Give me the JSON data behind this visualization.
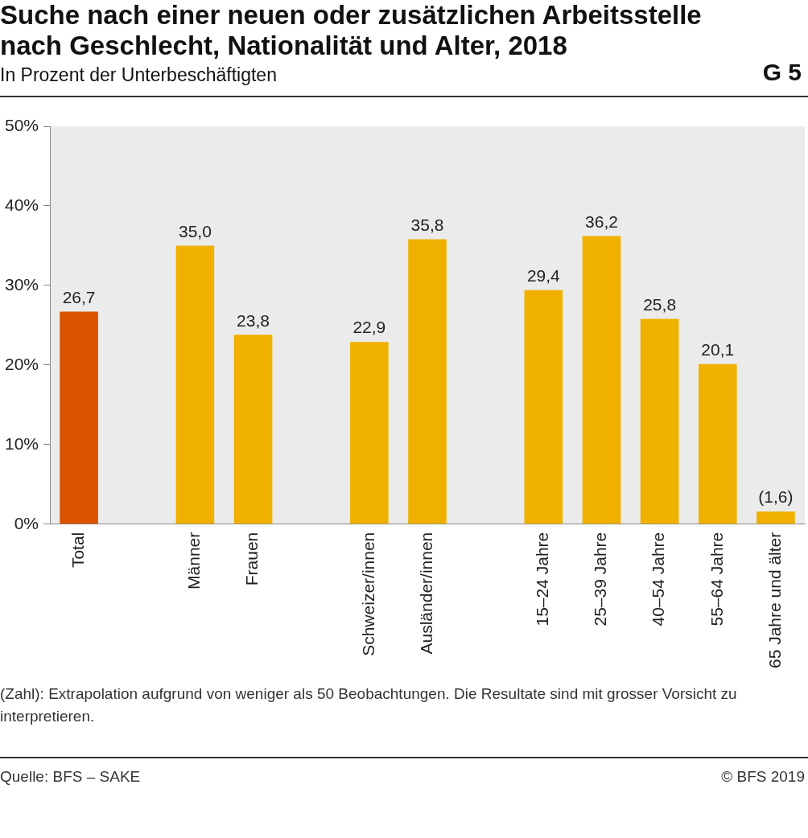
{
  "chart_data": {
    "type": "bar",
    "title": "Suche nach einer neuen oder zusätzlichen Arbeitsstelle nach Geschlecht, Nationalität und Alter, 2018",
    "subtitle": "In Prozent der Unterbeschäftigten",
    "categories": [
      "Total",
      null,
      "Männer",
      "Frauen",
      null,
      "Schweizer/innen",
      "Ausländer/innen",
      null,
      "15–24 Jahre",
      "25–39 Jahre",
      "40–54 Jahre",
      "55–64 Jahre",
      "65 Jahre und älter"
    ],
    "values": [
      26.7,
      null,
      35.0,
      23.8,
      null,
      22.9,
      35.8,
      null,
      29.4,
      36.2,
      25.8,
      20.1,
      1.6
    ],
    "value_labels": [
      "26,7",
      null,
      "35,0",
      "23,8",
      null,
      "22,9",
      "35,8",
      null,
      "29,4",
      "36,2",
      "25,8",
      "20,1",
      "(1,6)"
    ],
    "colors": [
      "#d95300",
      null,
      "#f0b000",
      "#f0b000",
      null,
      "#f0b000",
      "#f0b000",
      null,
      "#f0b000",
      "#f0b000",
      "#f0b000",
      "#f0b000",
      "#f0b000"
    ],
    "ylim": [
      0,
      50
    ],
    "yticks": [
      {
        "value": 0,
        "label": "0%"
      },
      {
        "value": 10,
        "label": "10%"
      },
      {
        "value": 20,
        "label": "20%"
      },
      {
        "value": 30,
        "label": "30%"
      },
      {
        "value": 40,
        "label": "40%"
      },
      {
        "value": 50,
        "label": "50%"
      }
    ],
    "grid": false,
    "legend": false,
    "annotations": [
      "G 5",
      "(Zahl): Extrapolation aufgrund von weniger als 50 Beobachtungen. Die Resultate sind mit grosser Vorsicht zu interpretieren.",
      "Quelle: BFS – SAKE",
      "© BFS 2019"
    ]
  }
}
